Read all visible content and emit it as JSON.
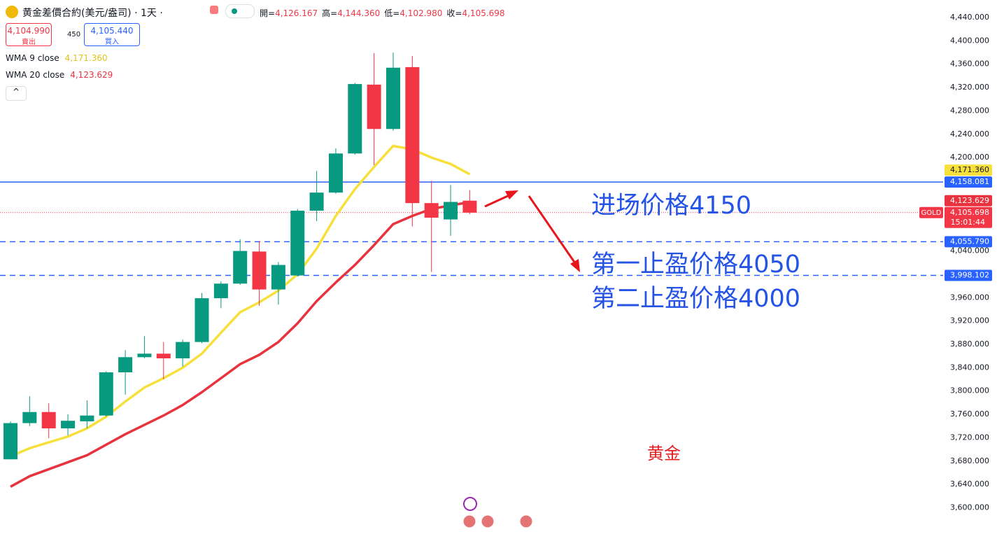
{
  "header": {
    "symbol": "黄金差價合約(美元/盎司)",
    "interval": "1天",
    "ohlc": [
      {
        "label": "開=",
        "value": "4,126.167"
      },
      {
        "label": "高=",
        "value": "4,144.360"
      },
      {
        "label": "低=",
        "value": "4,102.980"
      },
      {
        "label": "收=",
        "value": "4,105.698"
      }
    ],
    "sell": {
      "price": "4,104.990",
      "label": "賣出"
    },
    "spread": "450",
    "buy": {
      "price": "4,105.440",
      "label": "買入"
    }
  },
  "chart_data": {
    "type": "candlestick",
    "up_color": "#089981",
    "down_color": "#f23645",
    "open": [
      3683,
      3745,
      3764,
      3736,
      3748,
      3758,
      3832,
      3858,
      3864,
      3856,
      3884,
      3959,
      3984,
      4039,
      3974,
      3998,
      4109,
      4140,
      4207,
      4325,
      4249,
      4355,
      4122,
      4094,
      4126.167
    ],
    "high": [
      3748,
      3791,
      3779,
      3760,
      3784,
      3834,
      3870,
      3894,
      3884,
      3888,
      3968,
      3988,
      4060,
      4057,
      4021,
      4112,
      4177,
      4216,
      4328,
      4379,
      4380,
      4374,
      4160,
      4153,
      4144.36
    ],
    "low": [
      3683,
      3740,
      3719,
      3724,
      3736,
      3756,
      3794,
      3856,
      3820,
      3842,
      3882,
      3942,
      3982,
      3946,
      3948,
      3996,
      4091,
      4138,
      4205,
      4187,
      4246,
      4082,
      4004,
      4066,
      4102.98
    ],
    "close": [
      3745,
      3764,
      3736,
      3749,
      3758,
      3832,
      3858,
      3864,
      3856,
      3884,
      3959,
      3984,
      4040,
      3974,
      4016,
      4109,
      4140,
      4207,
      4326,
      4249,
      4354,
      4122,
      4097,
      4124,
      4105.698
    ],
    "overlays": [
      {
        "name": "WMA 9 close",
        "color": "#f7e03c",
        "legend_value": "4,171.360",
        "label_color": "#e0c21a",
        "values": [
          3688,
          3702,
          3712,
          3722,
          3736,
          3756,
          3782,
          3806,
          3822,
          3840,
          3864,
          3900,
          3935,
          3952,
          3972,
          4000,
          4044,
          4100,
          4146,
          4184,
          4220,
          4214,
          4200,
          4189,
          4171.36
        ]
      },
      {
        "name": "WMA 20 close",
        "color": "#e8333f",
        "legend_value": "4,123.629",
        "label_color": "#e8333f",
        "values": [
          3636,
          3654,
          3666,
          3678,
          3690,
          3708,
          3726,
          3742,
          3758,
          3776,
          3798,
          3822,
          3846,
          3862,
          3884,
          3916,
          3954,
          3986,
          4016,
          4050,
          4086,
          4100,
          4112,
          4118,
          4123.629
        ]
      }
    ],
    "price_lines": [
      {
        "value": 4171.36,
        "label": "4,171.360",
        "color": "#f7e03c",
        "text_color": "#131722",
        "style": "none"
      },
      {
        "value": 4158.081,
        "label": "4,158.081",
        "color": "#2962ff",
        "text_color": "#ffffff",
        "style": "solid"
      },
      {
        "value": 4123.629,
        "label": "4,123.629",
        "color": "#e8333f",
        "text_color": "#ffffff",
        "style": "none"
      },
      {
        "value": 4105.698,
        "label": "4,105.698",
        "color": "#f23645",
        "text_color": "#ffffff",
        "style": "dotted",
        "symbol": "GOLD",
        "countdown": "15:01:44"
      },
      {
        "value": 4055.79,
        "label": "4,055.790",
        "color": "#2962ff",
        "text_color": "#ffffff",
        "style": "dashed"
      },
      {
        "value": 3998.102,
        "label": "3,998.102",
        "color": "#2962ff",
        "text_color": "#ffffff",
        "style": "dashed"
      }
    ],
    "ylim": [
      3555,
      4470
    ],
    "yticks": [
      {
        "value": 4440,
        "label": "4,440.000"
      },
      {
        "value": 4400,
        "label": "4,400.000"
      },
      {
        "value": 4360,
        "label": "4,360.000"
      },
      {
        "value": 4320,
        "label": "4,320.000"
      },
      {
        "value": 4280,
        "label": "4,280.000"
      },
      {
        "value": 4240,
        "label": "4,240.000"
      },
      {
        "value": 4200,
        "label": "4,200.000"
      },
      {
        "value": 4040,
        "label": "4,040.000"
      },
      {
        "value": 3960,
        "label": "3,960.000"
      },
      {
        "value": 3920,
        "label": "3,920.000"
      },
      {
        "value": 3880,
        "label": "3,880.000"
      },
      {
        "value": 3840,
        "label": "3,840.000"
      },
      {
        "value": 3800,
        "label": "3,800.000"
      },
      {
        "value": 3760,
        "label": "3,760.000"
      },
      {
        "value": 3720,
        "label": "3,720.000"
      },
      {
        "value": 3680,
        "label": "3,680.000"
      },
      {
        "value": 3640,
        "label": "3,640.000"
      },
      {
        "value": 3600,
        "label": "3,600.000"
      }
    ],
    "annotations": [
      {
        "text": "进场价格4150",
        "color": "#2453e6"
      },
      {
        "text": "第一止盈价格4050",
        "color": "#2453e6"
      },
      {
        "text": "第二止盈价格4000",
        "color": "#2453e6"
      },
      {
        "text": "黄金",
        "color": "#e02020"
      }
    ]
  }
}
